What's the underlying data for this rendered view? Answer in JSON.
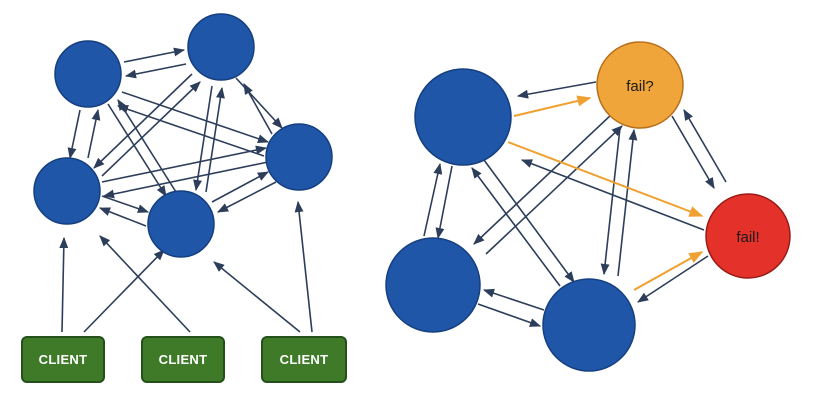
{
  "colors": {
    "node_normal": "#1f56a8",
    "node_stroke": "#153f7f",
    "node_suspect": "#f0a53b",
    "node_suspect_stroke": "#b8701c",
    "node_failed": "#e4322b",
    "node_failed_stroke": "#9b1c16",
    "client_fill": "#3f7a28",
    "client_stroke": "#24501a",
    "edge": "#2d3e5a",
    "edge_suspect": "#f0a030"
  },
  "left_diagram": {
    "clients": [
      {
        "label": "CLIENT"
      },
      {
        "label": "CLIENT"
      },
      {
        "label": "CLIENT"
      }
    ]
  },
  "right_diagram": {
    "suspect_node": {
      "label": "fail?"
    },
    "failed_node": {
      "label": "fail!"
    }
  }
}
